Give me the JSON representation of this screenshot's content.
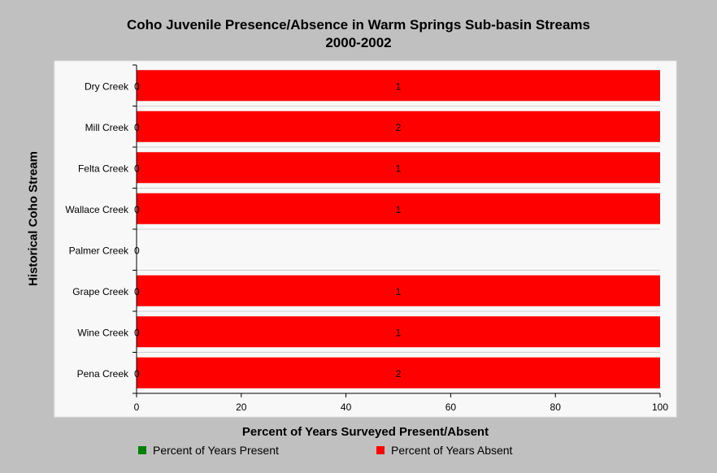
{
  "chart_data": {
    "type": "bar",
    "orientation": "horizontal",
    "stacked": true,
    "title": "Coho Juvenile Presence/Absence in Warm Springs Sub-basin Streams",
    "subtitle": "2000-2002",
    "xlabel": "Percent of Years Surveyed Present/Absent",
    "ylabel": "Historical Coho Stream",
    "xlim": [
      0,
      100
    ],
    "xticks": [
      0,
      20,
      40,
      60,
      80,
      100
    ],
    "categories": [
      "Dry Creek",
      "Mill Creek",
      "Felta Creek",
      "Wallace Creek",
      "Palmer Creek",
      "Grape Creek",
      "Wine Creek",
      "Pena Creek"
    ],
    "series": [
      {
        "name": "Percent of Years Present",
        "color": "#008000",
        "values": [
          0,
          0,
          0,
          0,
          0,
          0,
          0,
          0
        ],
        "labels": [
          "0",
          "0",
          "0",
          "0",
          "0",
          "0",
          "0",
          "0"
        ]
      },
      {
        "name": "Percent of Years Absent",
        "color": "#ff0000",
        "values": [
          100,
          100,
          100,
          100,
          0,
          100,
          100,
          100
        ],
        "labels": [
          "1",
          "2",
          "1",
          "1",
          "",
          "1",
          "1",
          "2"
        ]
      }
    ],
    "grid": true,
    "legend_position": "bottom"
  }
}
